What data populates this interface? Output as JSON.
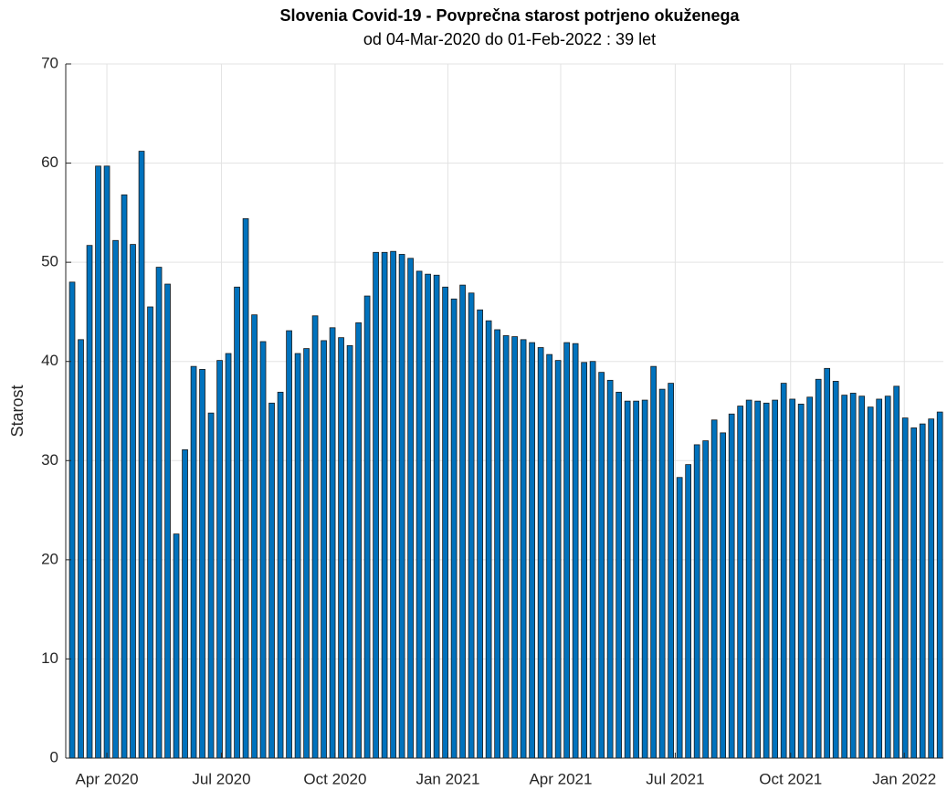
{
  "chart_data": {
    "type": "bar",
    "title": "Slovenia Covid-19 - Povprečna starost potrjeno okuženega",
    "subtitle": "od 04-Mar-2020 do 01-Feb-2022 :  39 let",
    "y_label": "Starost",
    "color": "#0072bd",
    "edge_color": "#1a1a1a",
    "grid": true,
    "values": [
      48.0,
      42.2,
      51.7,
      59.7,
      59.7,
      52.2,
      56.8,
      51.8,
      61.2,
      45.5,
      49.5,
      47.8,
      22.6,
      31.1,
      39.5,
      39.2,
      34.8,
      40.1,
      40.8,
      47.5,
      54.4,
      44.7,
      42.0,
      35.8,
      36.9,
      43.1,
      40.8,
      41.3,
      44.6,
      42.1,
      43.4,
      42.4,
      41.6,
      43.9,
      46.6,
      51.0,
      51.0,
      51.1,
      50.8,
      50.4,
      49.1,
      48.8,
      48.7,
      47.5,
      46.3,
      47.7,
      46.9,
      45.2,
      44.1,
      43.2,
      42.6,
      42.5,
      42.2,
      41.9,
      41.4,
      40.7,
      40.1,
      41.9,
      41.8,
      39.9,
      40.0,
      38.9,
      38.1,
      36.9,
      36.0,
      36.0,
      36.1,
      39.5,
      37.2,
      37.8,
      28.3,
      29.6,
      31.6,
      32.0,
      34.1,
      32.8,
      34.7,
      35.5,
      36.1,
      36.0,
      35.8,
      36.1,
      37.8,
      36.2,
      35.7,
      36.4,
      38.2,
      39.3,
      38.0,
      36.6,
      36.8,
      36.5,
      35.4,
      36.2,
      36.5,
      37.5,
      34.3,
      33.3,
      33.7,
      34.2,
      34.9
    ],
    "xlim": [
      -0.74,
      100.4
    ],
    "xticks": [
      {
        "value": 4.0,
        "label": "Apr 2020"
      },
      {
        "value": 17.2,
        "label": "Jul 2020"
      },
      {
        "value": 30.3,
        "label": "Oct 2020"
      },
      {
        "value": 43.3,
        "label": "Jan 2021"
      },
      {
        "value": 56.3,
        "label": "Apr 2021"
      },
      {
        "value": 69.5,
        "label": "Jul 2021"
      },
      {
        "value": 82.8,
        "label": "Oct 2021"
      },
      {
        "value": 95.9,
        "label": "Jan 2022"
      }
    ],
    "ylim": [
      0,
      70
    ],
    "yticks": [
      0,
      10,
      20,
      30,
      40,
      50,
      60,
      70
    ]
  }
}
